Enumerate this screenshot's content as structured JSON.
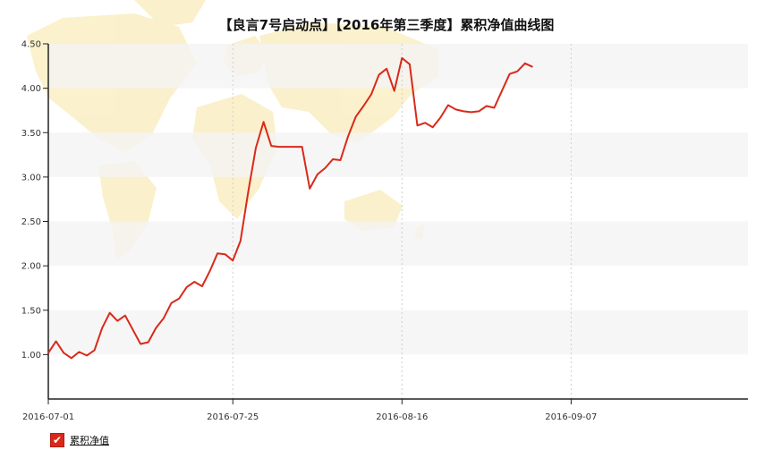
{
  "chart_data": {
    "type": "line",
    "title": "【良言7号启动点】【2016年第三季度】累积净值曲线图",
    "ylim": [
      0.5,
      4.5
    ],
    "yticks": [
      "1.00",
      "1.50",
      "2.00",
      "2.50",
      "3.00",
      "3.50",
      "4.00",
      "4.50"
    ],
    "xlim": [
      "2016-07-01",
      "2016-09-30"
    ],
    "xticks": [
      "2016-07-01",
      "2016-07-25",
      "2016-08-16",
      "2016-09-07"
    ],
    "grid": "alternating horizontal bands with vertical dashed lines",
    "legend_placement": "bottom-left",
    "series": [
      {
        "name": "累积净值",
        "color": "#d9291b",
        "points": [
          [
            "2016-07-01",
            1.02
          ],
          [
            "2016-07-02",
            1.15
          ],
          [
            "2016-07-03",
            1.02
          ],
          [
            "2016-07-04",
            0.96
          ],
          [
            "2016-07-05",
            1.03
          ],
          [
            "2016-07-06",
            0.99
          ],
          [
            "2016-07-07",
            1.05
          ],
          [
            "2016-07-08",
            1.3
          ],
          [
            "2016-07-09",
            1.47
          ],
          [
            "2016-07-10",
            1.38
          ],
          [
            "2016-07-11",
            1.44
          ],
          [
            "2016-07-13",
            1.12
          ],
          [
            "2016-07-14",
            1.14
          ],
          [
            "2016-07-15",
            1.3
          ],
          [
            "2016-07-16",
            1.41
          ],
          [
            "2016-07-17",
            1.58
          ],
          [
            "2016-07-18",
            1.63
          ],
          [
            "2016-07-19",
            1.76
          ],
          [
            "2016-07-20",
            1.82
          ],
          [
            "2016-07-21",
            1.77
          ],
          [
            "2016-07-22",
            1.94
          ],
          [
            "2016-07-23",
            2.14
          ],
          [
            "2016-07-24",
            2.13
          ],
          [
            "2016-07-25",
            2.06
          ],
          [
            "2016-07-26",
            2.28
          ],
          [
            "2016-07-27",
            2.83
          ],
          [
            "2016-07-28",
            3.33
          ],
          [
            "2016-07-29",
            3.62
          ],
          [
            "2016-07-30",
            3.35
          ],
          [
            "2016-07-31",
            3.34
          ],
          [
            "2016-08-03",
            3.34
          ],
          [
            "2016-08-04",
            2.87
          ],
          [
            "2016-08-05",
            3.03
          ],
          [
            "2016-08-06",
            3.1
          ],
          [
            "2016-08-07",
            3.2
          ],
          [
            "2016-08-08",
            3.19
          ],
          [
            "2016-08-09",
            3.46
          ],
          [
            "2016-08-10",
            3.68
          ],
          [
            "2016-08-11",
            3.8
          ],
          [
            "2016-08-12",
            3.93
          ],
          [
            "2016-08-13",
            4.15
          ],
          [
            "2016-08-14",
            4.22
          ],
          [
            "2016-08-15",
            3.97
          ],
          [
            "2016-08-16",
            4.34
          ],
          [
            "2016-08-17",
            4.27
          ],
          [
            "2016-08-18",
            3.58
          ],
          [
            "2016-08-19",
            3.61
          ],
          [
            "2016-08-20",
            3.56
          ],
          [
            "2016-08-21",
            3.67
          ],
          [
            "2016-08-22",
            3.81
          ],
          [
            "2016-08-23",
            3.76
          ],
          [
            "2016-08-24",
            3.74
          ],
          [
            "2016-08-25",
            3.73
          ],
          [
            "2016-08-26",
            3.74
          ],
          [
            "2016-08-27",
            3.8
          ],
          [
            "2016-08-28",
            3.78
          ],
          [
            "2016-08-29",
            3.97
          ],
          [
            "2016-08-30",
            4.16
          ],
          [
            "2016-08-31",
            4.19
          ],
          [
            "2016-09-01",
            4.28
          ],
          [
            "2016-09-02",
            4.24
          ]
        ]
      }
    ]
  }
}
